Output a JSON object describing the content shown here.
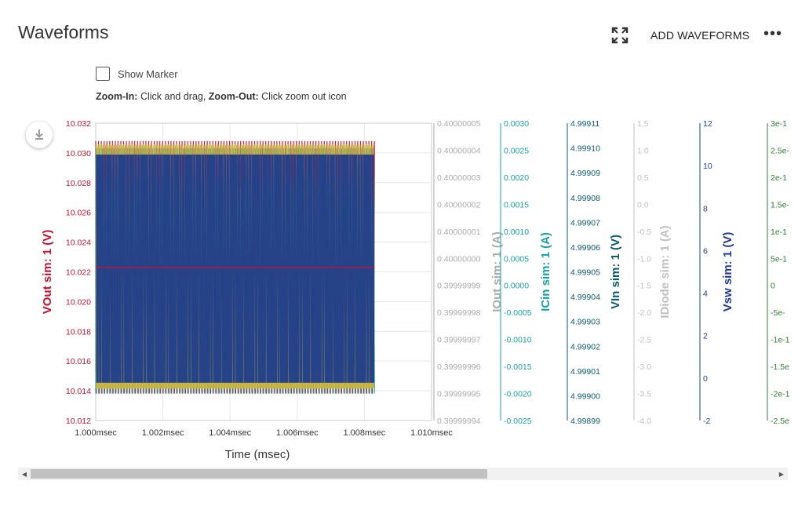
{
  "header": {
    "title": "Waveforms",
    "add_waveforms_label": "ADD WAVEFORMS",
    "more_label": "•••"
  },
  "controls": {
    "show_marker_label": "Show Marker",
    "show_marker_checked": false,
    "zoom_in_label": "Zoom-In:",
    "zoom_in_text": " Click and drag, ",
    "zoom_out_label": "Zoom-Out:",
    "zoom_out_text": " Click zoom out icon"
  },
  "icons": {
    "fullscreen": "fullscreen-icon",
    "download": "download-icon",
    "more": "more-horizontal-icon"
  },
  "chart_data": {
    "type": "line",
    "title": "",
    "xlabel": "Time (msec)",
    "xlim": [
      1.0,
      1.01
    ],
    "x_ticks": [
      "1.000msec",
      "1.002msec",
      "1.004msec",
      "1.006msec",
      "1.008msec",
      "1.010msec"
    ],
    "grid": true,
    "axes": [
      {
        "id": "vout",
        "label": "VOut sim: 1 (V)",
        "color": "#c8102e",
        "side": "left",
        "ticks": [
          "10.032",
          "10.030",
          "10.028",
          "10.026",
          "10.024",
          "10.022",
          "10.020",
          "10.018",
          "10.016",
          "10.014",
          "10.012"
        ]
      },
      {
        "id": "iout",
        "label": "IOut sim: 1 (A)",
        "color": "#aaaaaa",
        "ticks": [
          "0.40000005",
          "0.40000004",
          "0.40000003",
          "0.40000002",
          "0.40000001",
          "0.40000000",
          "0.39999999",
          "0.39999998",
          "0.39999997",
          "0.39999996",
          "0.39999995",
          "0.39999994"
        ]
      },
      {
        "id": "icin",
        "label": "ICin sim: 1 (A)",
        "color": "#17a2a2",
        "ticks": [
          "0.0030",
          "0.0025",
          "0.0020",
          "0.0015",
          "0.0010",
          "0.0005",
          "0.0000",
          "-0.0005",
          "-0.0010",
          "-0.0015",
          "-0.0020",
          "-0.0025"
        ]
      },
      {
        "id": "vin",
        "label": "VIn sim: 1 (V)",
        "color": "#0b5b6b",
        "ticks": [
          "4.99911",
          "4.99910",
          "4.99909",
          "4.99908",
          "4.99907",
          "4.99906",
          "4.99905",
          "4.99904",
          "4.99903",
          "4.99902",
          "4.99901",
          "4.99900",
          "4.99899"
        ]
      },
      {
        "id": "idiode",
        "label": "IDiode sim: 1 (A)",
        "color": "#c0c0c0",
        "ticks": [
          "1.5",
          "1.0",
          "0.5",
          "0.0",
          "-0.5",
          "-1.0",
          "-1.5",
          "-2.0",
          "-2.5",
          "-3.0",
          "-3.5",
          "-4.0"
        ]
      },
      {
        "id": "vsw",
        "label": "Vsw sim: 1 (V)",
        "color": "#1f3d8c",
        "ticks": [
          "12",
          "10",
          "8",
          "6",
          "4",
          "2",
          "0",
          "-2"
        ]
      },
      {
        "id": "extra",
        "label": "",
        "color": "#2e7d32",
        "ticks": [
          "3e-1",
          "2.5e-",
          "2e-1",
          "1.5e-",
          "1e-1",
          "5e-1",
          "0",
          "-5e-",
          "-1e-1",
          "-1.5e",
          "-2e-1",
          "-2.5e"
        ]
      }
    ],
    "series": [
      {
        "name": "VOut sim: 1",
        "axis": "vout",
        "color": "#c8102e",
        "period": 0.001,
        "min": 10.0136,
        "max": 10.0308,
        "mean": 10.0223,
        "end": 1.0083
      },
      {
        "name": "IOut sim: 1",
        "axis": "iout",
        "color": "#aaaaaa",
        "constant": 0.3999999994
      },
      {
        "name": "ICin sim: 1",
        "axis": "icin",
        "color": "#17a2a2",
        "period": 0.001,
        "min": -0.002,
        "max": 0.0026,
        "end": 1.0083
      },
      {
        "name": "VIn sim: 1",
        "axis": "vin",
        "color": "#0b5b6b",
        "period": 0.001,
        "min": 4.999,
        "max": 4.9991,
        "end": 1.0083
      },
      {
        "name": "IDiode sim: 1",
        "axis": "idiode",
        "color": "#c8b43c",
        "period": 0.001,
        "min": -3.4,
        "max": 1.1,
        "end": 1.0083
      },
      {
        "name": "Vsw sim: 1",
        "axis": "vsw",
        "color": "#1f3d8c",
        "period": 0.001,
        "min": -0.2,
        "max": 10.5,
        "end": 1.0083
      }
    ]
  },
  "scrollbar": {
    "left_arrow": "◀",
    "right_arrow": "▶"
  }
}
